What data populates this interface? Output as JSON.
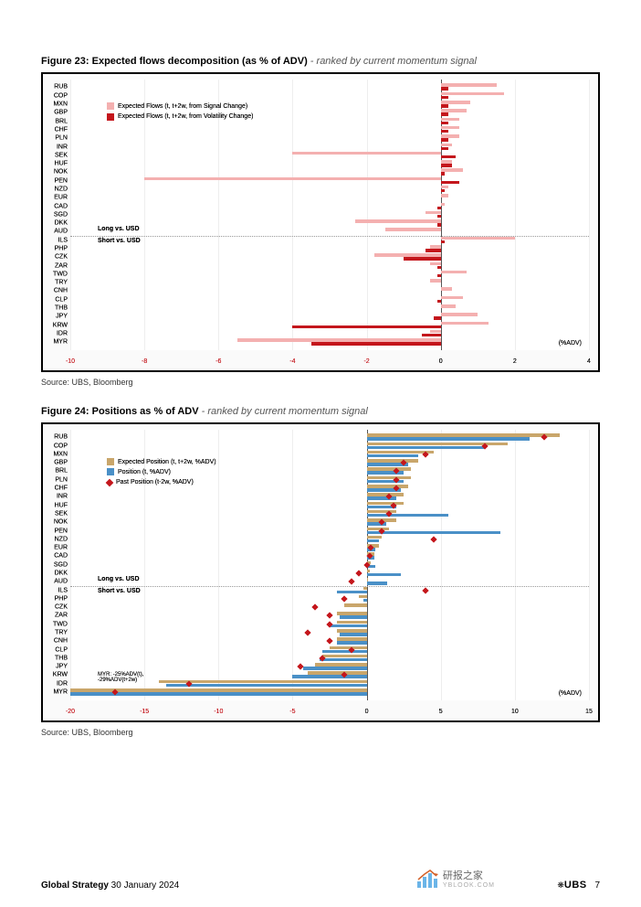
{
  "figure23": {
    "title_strong": "Figure 23: Expected flows decomposition (as % of ADV)",
    "title_rest": " - ranked by current momentum signal",
    "source": "Source: UBS, Bloomberg",
    "type": "barh-grouped",
    "legend": [
      {
        "label": "Expected Flows (t, t+2w, from Signal Change)",
        "color": "#f4b0b0"
      },
      {
        "label": "Expected Flows (t, t+2w, from Volatility Change)",
        "color": "#c4161c"
      }
    ],
    "xlim": [
      -10,
      4
    ],
    "xticks": [
      -10,
      -8,
      -6,
      -4,
      -2,
      0,
      2,
      4
    ],
    "adv_label": "(%ADV)",
    "colors": {
      "light": "#f4b0b0",
      "dark": "#c4161c",
      "xtick_neg": "#c4161c",
      "xtick_pos": "#000000",
      "grid": "#eeeeee",
      "zero": "#555555"
    },
    "separator_after_index": 17,
    "long_label": "Long vs. USD",
    "short_label": "Short vs. USD",
    "categories": [
      "RUB",
      "COP",
      "MXN",
      "GBP",
      "BRL",
      "CHF",
      "PLN",
      "INR",
      "SEK",
      "HUF",
      "NOK",
      "PEN",
      "NZD",
      "EUR",
      "CAD",
      "SGD",
      "DKK",
      "AUD",
      "ILS",
      "PHP",
      "CZK",
      "ZAR",
      "TWD",
      "TRY",
      "CNH",
      "CLP",
      "THB",
      "JPY",
      "KRW",
      "IDR",
      "MYR"
    ],
    "light_vals": [
      1.5,
      1.7,
      0.8,
      0.7,
      0.5,
      0.5,
      0.5,
      0.3,
      -4.0,
      0.3,
      0.6,
      -8.0,
      0.2,
      0.2,
      0.1,
      -0.4,
      -2.3,
      -1.5,
      2.0,
      -0.3,
      -1.8,
      -0.3,
      0.7,
      -0.3,
      0.3,
      0.6,
      0.4,
      1.0,
      1.3,
      -0.3,
      -5.5
    ],
    "dark_vals": [
      0.2,
      0.2,
      0.2,
      0.2,
      0.2,
      0.2,
      0.2,
      0.2,
      0.4,
      0.3,
      0.1,
      0.5,
      0.1,
      0.0,
      -0.1,
      -0.1,
      -0.1,
      0.0,
      0.1,
      -0.4,
      -1.0,
      -0.1,
      -0.1,
      0.0,
      0.0,
      -0.1,
      0.0,
      -0.2,
      -4.0,
      -0.5,
      -3.5
    ]
  },
  "figure24": {
    "title_strong": "Figure 24: Positions as % of ADV",
    "title_rest": " - ranked by current momentum signal",
    "source": "Source: UBS, Bloomberg",
    "type": "barh-grouped-scatter",
    "legend": [
      {
        "label": "Expected Position (t, t+2w, %ADV)",
        "color": "#c9a66b"
      },
      {
        "label": "Position (t, %ADV)",
        "color": "#4a90c7"
      },
      {
        "label": "Past Position (t-2w, %ADV)",
        "color": "#c4161c"
      }
    ],
    "xlim": [
      -20,
      15
    ],
    "xticks": [
      -20,
      -15,
      -10,
      -5,
      0,
      5,
      10,
      15
    ],
    "adv_label": "(%ADV)",
    "colors": {
      "tan": "#c9a66b",
      "blue": "#4a90c7",
      "red": "#c4161c",
      "xtick_neg": "#c4161c",
      "xtick_pos": "#000000",
      "grid": "#eeeeee",
      "zero": "#555555"
    },
    "separator_after_index": 17,
    "long_label": "Long vs. USD",
    "short_label": "Short vs. USD",
    "myr_note": "MYR: -25%ADV(t), -29%ADV(t+2w)",
    "categories": [
      "RUB",
      "COP",
      "MXN",
      "GBP",
      "BRL",
      "PLN",
      "CHF",
      "INR",
      "HUF",
      "SEK",
      "NOK",
      "PEN",
      "NZD",
      "EUR",
      "CAD",
      "SGD",
      "DKK",
      "AUD",
      "ILS",
      "PHP",
      "CZK",
      "ZAR",
      "TWD",
      "TRY",
      "CNH",
      "CLP",
      "THB",
      "JPY",
      "KRW",
      "IDR",
      "MYR"
    ],
    "tan_vals": [
      13.0,
      9.5,
      4.5,
      3.5,
      3.0,
      3.0,
      2.8,
      2.5,
      2.5,
      2.0,
      2.0,
      1.5,
      1.0,
      0.8,
      0.5,
      0.3,
      0.2,
      0.1,
      -0.2,
      -0.5,
      -1.5,
      -2.0,
      -2.0,
      -2.0,
      -2.0,
      -2.5,
      -3.0,
      -3.5,
      -4.0,
      -14.0,
      -20.0
    ],
    "blue_vals": [
      11.0,
      8.0,
      3.5,
      2.8,
      2.5,
      2.5,
      2.3,
      2.0,
      2.0,
      5.5,
      1.3,
      9.0,
      0.8,
      0.6,
      0.5,
      0.6,
      2.3,
      1.4,
      -2.0,
      -0.2,
      -0.0,
      -1.8,
      -2.5,
      -1.8,
      -2.0,
      -3.0,
      -3.2,
      -4.3,
      -5.0,
      -13.5,
      -20.0
    ],
    "red_vals": [
      12.0,
      8.0,
      4.0,
      2.5,
      2.0,
      2.0,
      2.0,
      1.5,
      1.8,
      1.5,
      1.0,
      1.0,
      4.5,
      0.3,
      0.2,
      0.0,
      -0.5,
      -1.0,
      4.0,
      -1.5,
      -3.5,
      -2.5,
      -2.5,
      -4.0,
      -2.5,
      -1.0,
      -3.0,
      -4.5,
      -1.5,
      -12.0,
      -17.0
    ]
  },
  "footer": {
    "left_strong": "Global Strategy",
    "left_rest": "  30 January 2024",
    "ubs": "UBS",
    "page": "7"
  },
  "watermark": {
    "text": "研报之家",
    "url": "YBLOOK.COM"
  }
}
